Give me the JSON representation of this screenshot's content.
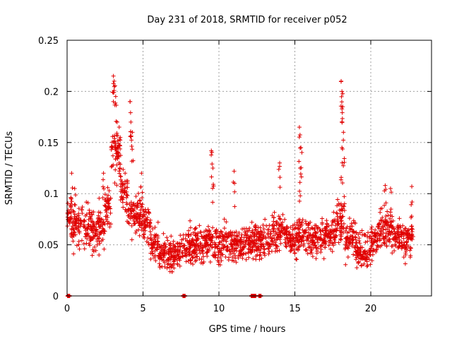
{
  "chart_data": {
    "type": "scatter",
    "title": "Day 231 of 2018, SRMTID for receiver p052",
    "xlabel": "GPS time / hours",
    "ylabel": "SRMTID / TECUs",
    "xlim": [
      0,
      24
    ],
    "ylim": [
      0,
      0.25
    ],
    "xticks": [
      0,
      5,
      10,
      15,
      20
    ],
    "xtick_labels": [
      "0",
      "5",
      "10",
      "15",
      "20"
    ],
    "yticks": [
      0,
      0.05,
      0.1,
      0.15,
      0.2,
      0.25
    ],
    "ytick_labels": [
      "0",
      "0.05",
      "0.1",
      "0.15",
      "0.2",
      "0.25"
    ],
    "grid": true,
    "marker": "+",
    "color": "#e00000",
    "series": [
      {
        "name": "SRMTID",
        "bands": [
          {
            "x0": 0.0,
            "x1": 0.3,
            "base": 0.078,
            "spread": 0.02
          },
          {
            "x0": 0.3,
            "x1": 1.0,
            "base": 0.07,
            "spread": 0.025
          },
          {
            "x0": 1.0,
            "x1": 2.0,
            "base": 0.065,
            "spread": 0.025
          },
          {
            "x0": 2.0,
            "x1": 2.5,
            "base": 0.07,
            "spread": 0.03
          },
          {
            "x0": 2.5,
            "x1": 2.9,
            "base": 0.085,
            "spread": 0.03
          },
          {
            "x0": 2.9,
            "x1": 3.5,
            "base": 0.14,
            "spread": 0.03
          },
          {
            "x0": 3.5,
            "x1": 4.0,
            "base": 0.1,
            "spread": 0.03
          },
          {
            "x0": 4.0,
            "x1": 5.0,
            "base": 0.08,
            "spread": 0.025
          },
          {
            "x0": 5.0,
            "x1": 5.5,
            "base": 0.07,
            "spread": 0.025
          },
          {
            "x0": 5.5,
            "x1": 6.0,
            "base": 0.05,
            "spread": 0.02
          },
          {
            "x0": 6.0,
            "x1": 7.5,
            "base": 0.04,
            "spread": 0.02
          },
          {
            "x0": 7.5,
            "x1": 9.0,
            "base": 0.048,
            "spread": 0.022
          },
          {
            "x0": 9.0,
            "x1": 10.0,
            "base": 0.052,
            "spread": 0.022
          },
          {
            "x0": 10.0,
            "x1": 11.5,
            "base": 0.05,
            "spread": 0.022
          },
          {
            "x0": 11.5,
            "x1": 12.3,
            "base": 0.052,
            "spread": 0.02
          },
          {
            "x0": 12.3,
            "x1": 13.5,
            "base": 0.055,
            "spread": 0.022
          },
          {
            "x0": 13.5,
            "x1": 14.5,
            "base": 0.062,
            "spread": 0.02
          },
          {
            "x0": 14.5,
            "x1": 15.2,
            "base": 0.055,
            "spread": 0.022
          },
          {
            "x0": 15.2,
            "x1": 16.0,
            "base": 0.06,
            "spread": 0.022
          },
          {
            "x0": 16.0,
            "x1": 17.0,
            "base": 0.055,
            "spread": 0.022
          },
          {
            "x0": 17.0,
            "x1": 17.7,
            "base": 0.06,
            "spread": 0.022
          },
          {
            "x0": 17.7,
            "x1": 18.3,
            "base": 0.075,
            "spread": 0.03
          },
          {
            "x0": 18.3,
            "x1": 19.0,
            "base": 0.055,
            "spread": 0.022
          },
          {
            "x0": 19.0,
            "x1": 20.0,
            "base": 0.045,
            "spread": 0.022
          },
          {
            "x0": 20.0,
            "x1": 20.5,
            "base": 0.055,
            "spread": 0.022
          },
          {
            "x0": 20.5,
            "x1": 21.5,
            "base": 0.065,
            "spread": 0.025
          },
          {
            "x0": 21.5,
            "x1": 22.0,
            "base": 0.06,
            "spread": 0.022
          },
          {
            "x0": 22.0,
            "x1": 22.8,
            "base": 0.055,
            "spread": 0.02
          }
        ],
        "spikes": [
          {
            "x": 0.3,
            "y": 0.12
          },
          {
            "x": 0.5,
            "y": 0.105
          },
          {
            "x": 2.4,
            "y": 0.12
          },
          {
            "x": 3.05,
            "y": 0.215
          },
          {
            "x": 3.1,
            "y": 0.21
          },
          {
            "x": 3.2,
            "y": 0.195
          },
          {
            "x": 3.3,
            "y": 0.17
          },
          {
            "x": 3.5,
            "y": 0.155
          },
          {
            "x": 4.15,
            "y": 0.19
          },
          {
            "x": 4.2,
            "y": 0.17
          },
          {
            "x": 4.3,
            "y": 0.16
          },
          {
            "x": 4.9,
            "y": 0.12
          },
          {
            "x": 9.5,
            "y": 0.142
          },
          {
            "x": 9.6,
            "y": 0.125
          },
          {
            "x": 11.0,
            "y": 0.122
          },
          {
            "x": 14.0,
            "y": 0.13
          },
          {
            "x": 15.3,
            "y": 0.165
          },
          {
            "x": 15.4,
            "y": 0.145
          },
          {
            "x": 15.35,
            "y": 0.125
          },
          {
            "x": 18.05,
            "y": 0.21
          },
          {
            "x": 18.1,
            "y": 0.2
          },
          {
            "x": 18.15,
            "y": 0.185
          },
          {
            "x": 18.2,
            "y": 0.16
          },
          {
            "x": 18.1,
            "y": 0.145
          },
          {
            "x": 20.95,
            "y": 0.108
          },
          {
            "x": 21.3,
            "y": 0.105
          },
          {
            "x": 22.7,
            "y": 0.107
          }
        ],
        "floor_points": [
          {
            "x": 0.1,
            "y": 0.0
          },
          {
            "x": 7.7,
            "y": 0.0
          },
          {
            "x": 12.2,
            "y": 0.0
          },
          {
            "x": 12.35,
            "y": 0.0
          },
          {
            "x": 12.7,
            "y": 0.0
          }
        ]
      }
    ]
  }
}
